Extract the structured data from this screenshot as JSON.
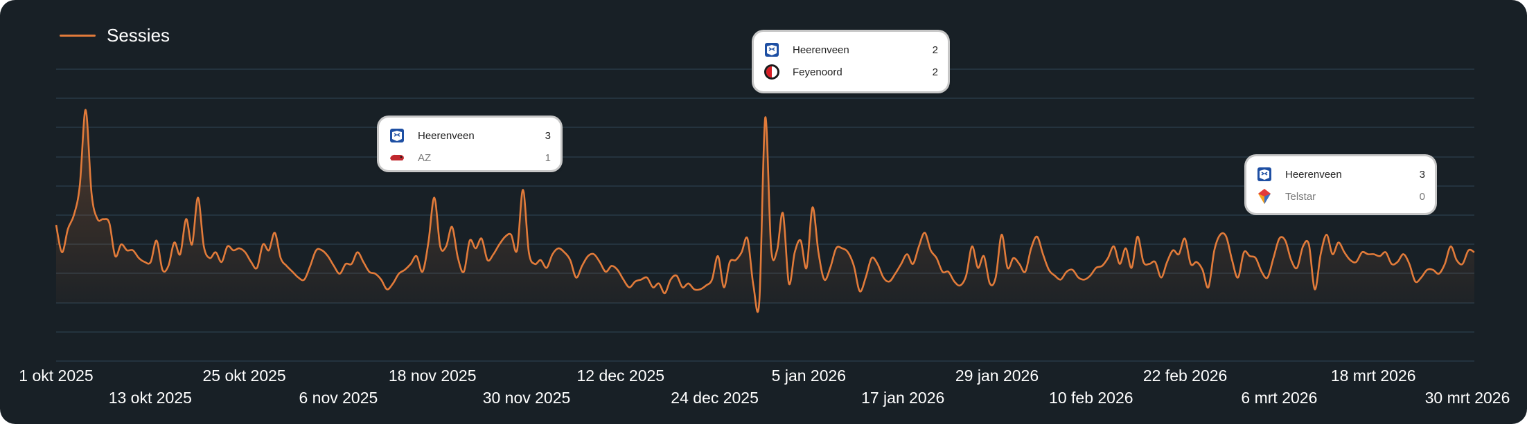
{
  "legend": {
    "label": "Sessies",
    "color": "#e27b3a"
  },
  "colors": {
    "background": "#182026",
    "line": "#e27b3a",
    "grid": "#2c3f4c"
  },
  "chart_data": {
    "type": "line",
    "x_start": "1 okt 2025",
    "x_end": "31 mrt 2026",
    "grid": true,
    "legend_position": "top-left",
    "x_tick_labels": [
      "1 okt 2025",
      "13 okt 2025",
      "25 okt 2025",
      "6 nov 2025",
      "18 nov 2025",
      "30 nov 2025",
      "12 dec 2025",
      "24 dec 2025",
      "5 jan 2026",
      "17 jan 2026",
      "29 jan 2026",
      "10 feb 2026",
      "22 feb 2026",
      "6 mrt 2026",
      "18 mrt 2026",
      "30 mrt 2026"
    ],
    "series": [
      {
        "name": "Sessies",
        "values": [
          40,
          26,
          38,
          45,
          60,
          99,
          56,
          43,
          43,
          41,
          24,
          30,
          27,
          27,
          23,
          21,
          21,
          32,
          17,
          19,
          31,
          25,
          43,
          30,
          54,
          29,
          23,
          26,
          21,
          29,
          27,
          28,
          26,
          21,
          18,
          30,
          27,
          36,
          23,
          19,
          16,
          13,
          12,
          19,
          27,
          27,
          24,
          19,
          15,
          20,
          20,
          26,
          21,
          16,
          15,
          12,
          7,
          10,
          15,
          17,
          20,
          24,
          16,
          31,
          54,
          29,
          29,
          39,
          23,
          16,
          32,
          28,
          33,
          22,
          25,
          30,
          34,
          35,
          27,
          58,
          26,
          20,
          22,
          18,
          25,
          28,
          26,
          22,
          13,
          19,
          24,
          25,
          21,
          16,
          19,
          17,
          12,
          8,
          11,
          12,
          13,
          8,
          10,
          5,
          12,
          14,
          8,
          10,
          7,
          7,
          9,
          12,
          24,
          8,
          21,
          22,
          26,
          33,
          9,
          1,
          95,
          28,
          27,
          46,
          10,
          26,
          32,
          18,
          49,
          26,
          12,
          18,
          28,
          28,
          26,
          19,
          6,
          13,
          23,
          20,
          13,
          11,
          15,
          20,
          25,
          20,
          29,
          36,
          27,
          23,
          16,
          16,
          11,
          9,
          14,
          29,
          18,
          24,
          10,
          13,
          35,
          18,
          23,
          20,
          16,
          28,
          34,
          25,
          17,
          14,
          12,
          16,
          17,
          13,
          12,
          14,
          18,
          19,
          23,
          29,
          20,
          28,
          18,
          34,
          21,
          20,
          21,
          13,
          21,
          27,
          25,
          33,
          20,
          21,
          17,
          8,
          27,
          35,
          34,
          22,
          13,
          26,
          24,
          23,
          16,
          13,
          23,
          33,
          32,
          22,
          18,
          29,
          30,
          7,
          25,
          35,
          25,
          31,
          26,
          22,
          21,
          26,
          25,
          25,
          24,
          26,
          20,
          21,
          25,
          20,
          11,
          13,
          17,
          17,
          15,
          20,
          29,
          22,
          20,
          27,
          26
        ]
      }
    ],
    "annotations": [
      {
        "home": "Heerenveen",
        "home_score": "3",
        "away": "AZ",
        "away_score": "1"
      },
      {
        "home": "Heerenveen",
        "home_score": "2",
        "away": "Feyenoord",
        "away_score": "2"
      },
      {
        "home": "Heerenveen",
        "home_score": "3",
        "away": "Telstar",
        "away_score": "0"
      }
    ]
  }
}
